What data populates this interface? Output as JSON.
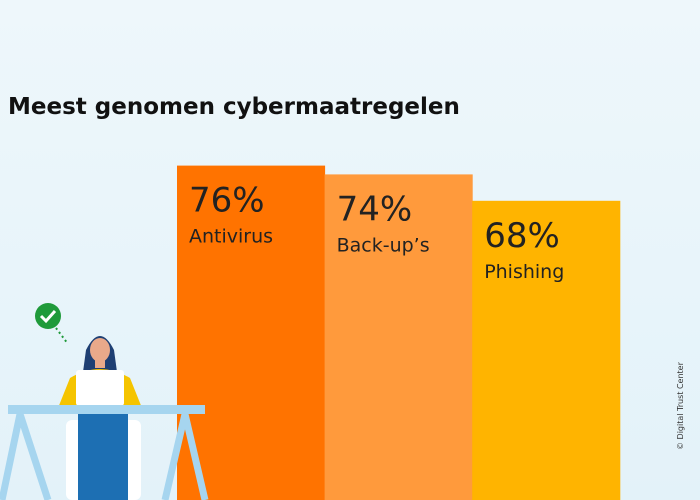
{
  "chart_data": {
    "type": "bar",
    "title": "Meest genomen cybermaatregelen",
    "categories": [
      "Antivirus",
      "Back-up’s",
      "Phishing"
    ],
    "values": [
      76,
      74,
      68
    ],
    "value_labels": [
      "76%",
      "74%",
      "68%"
    ],
    "colors": [
      "#ff7300",
      "#ff9a3c",
      "#ffb400"
    ],
    "credit": "© Digital Trust Center"
  }
}
